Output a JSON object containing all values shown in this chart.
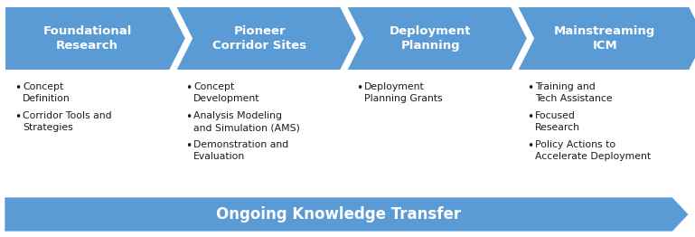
{
  "bg_color": "#ffffff",
  "arrow_color": "#5B9BD5",
  "arrow_color_bottom": "#5B9BD5",
  "text_color_white": "#ffffff",
  "text_color_dark": "#1a1a1a",
  "phases": [
    {
      "title": "Foundational\nResearch",
      "bullets": [
        {
          "first": "Concept",
          "cont": "Definition"
        },
        {
          "first": "Corridor Tools and",
          "cont": "Strategies"
        }
      ]
    },
    {
      "title": "Pioneer\nCorridor Sites",
      "bullets": [
        {
          "first": "Concept",
          "cont": "Development"
        },
        {
          "first": "Analysis Modeling",
          "cont": "and Simulation (AMS)"
        },
        {
          "first": "Demonstration and",
          "cont": "Evaluation"
        }
      ]
    },
    {
      "title": "Deployment\nPlanning",
      "bullets": [
        {
          "first": "Deployment",
          "cont": "Planning Grants"
        }
      ]
    },
    {
      "title": "Mainstreaming\nICM",
      "bullets": [
        {
          "first": "Training and",
          "cont": "Tech Assistance"
        },
        {
          "first": "Focused",
          "cont": "Research"
        },
        {
          "first": "Policy Actions to",
          "cont": "Accelerate Deployment"
        }
      ]
    }
  ],
  "bottom_label": "Ongoing Knowledge Transfer",
  "fig_width": 7.69,
  "fig_height": 2.62,
  "dpi": 100
}
